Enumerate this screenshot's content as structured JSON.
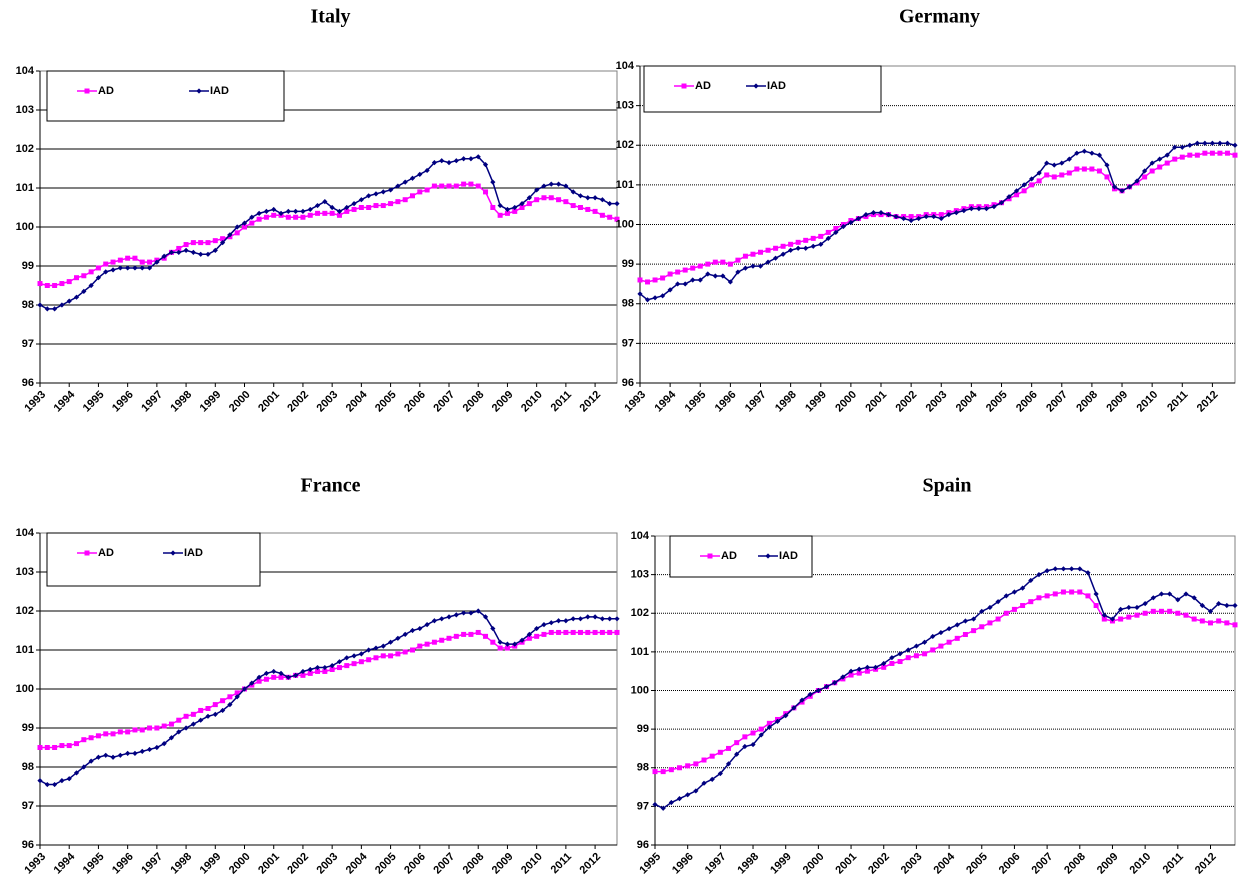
{
  "chart_data": [
    {
      "type": "line",
      "title": "Italy",
      "categories": [
        "1993",
        null,
        null,
        null,
        "1994",
        null,
        null,
        null,
        "1995",
        null,
        null,
        null,
        "1996",
        null,
        null,
        null,
        "1997",
        null,
        null,
        null,
        "1998",
        null,
        null,
        null,
        "1999",
        null,
        null,
        null,
        "2000",
        null,
        null,
        null,
        "2001",
        null,
        null,
        null,
        "2002",
        null,
        null,
        null,
        "2003",
        null,
        null,
        null,
        "2004",
        null,
        null,
        null,
        "2005",
        null,
        null,
        null,
        "2006",
        null,
        null,
        null,
        "2007",
        null,
        null,
        null,
        "2008",
        null,
        null,
        null,
        "2009",
        null,
        null,
        null,
        "2010",
        null,
        null,
        null,
        "2011",
        null,
        null,
        null,
        "2012",
        null,
        null,
        null
      ],
      "series": [
        {
          "name": "AD",
          "color": "#ff00ff",
          "values": [
            98.55,
            98.5,
            98.5,
            98.55,
            98.6,
            98.7,
            98.75,
            98.85,
            98.95,
            99.05,
            99.1,
            99.15,
            99.2,
            99.2,
            99.1,
            99.1,
            99.15,
            99.2,
            99.35,
            99.45,
            99.55,
            99.6,
            99.6,
            99.6,
            99.65,
            99.7,
            99.75,
            99.85,
            100.0,
            100.1,
            100.2,
            100.25,
            100.3,
            100.3,
            100.25,
            100.25,
            100.25,
            100.3,
            100.35,
            100.35,
            100.35,
            100.3,
            100.4,
            100.45,
            100.5,
            100.5,
            100.55,
            100.55,
            100.6,
            100.65,
            100.7,
            100.8,
            100.9,
            100.95,
            101.05,
            101.05,
            101.05,
            101.05,
            101.1,
            101.1,
            101.05,
            100.9,
            100.5,
            100.3,
            100.35,
            100.4,
            100.5,
            100.6,
            100.7,
            100.75,
            100.75,
            100.7,
            100.65,
            100.55,
            100.5,
            100.45,
            100.4,
            100.3,
            100.25,
            100.2
          ]
        },
        {
          "name": "IAD",
          "color": "#000080",
          "values": [
            98.0,
            97.9,
            97.9,
            98.0,
            98.1,
            98.2,
            98.35,
            98.5,
            98.7,
            98.85,
            98.9,
            98.95,
            98.95,
            98.95,
            98.95,
            98.95,
            99.1,
            99.25,
            99.35,
            99.35,
            99.4,
            99.35,
            99.3,
            99.3,
            99.4,
            99.6,
            99.8,
            100.0,
            100.1,
            100.25,
            100.35,
            100.4,
            100.45,
            100.35,
            100.4,
            100.4,
            100.4,
            100.45,
            100.55,
            100.65,
            100.5,
            100.4,
            100.5,
            100.6,
            100.7,
            100.8,
            100.85,
            100.9,
            100.95,
            101.05,
            101.15,
            101.25,
            101.35,
            101.45,
            101.65,
            101.7,
            101.65,
            101.7,
            101.75,
            101.75,
            101.8,
            101.6,
            101.15,
            100.55,
            100.45,
            100.5,
            100.6,
            100.75,
            100.95,
            101.05,
            101.1,
            101.1,
            101.05,
            100.9,
            100.8,
            100.75,
            100.75,
            100.7,
            100.6,
            100.6
          ]
        }
      ],
      "ylim": [
        96,
        104
      ],
      "yticks": [
        96,
        97,
        98,
        99,
        100,
        101,
        102,
        103,
        104
      ],
      "grid": true
    },
    {
      "type": "line",
      "title": "Germany",
      "categories": [
        "1993",
        null,
        null,
        null,
        "1994",
        null,
        null,
        null,
        "1995",
        null,
        null,
        null,
        "1996",
        null,
        null,
        null,
        "1997",
        null,
        null,
        null,
        "1998",
        null,
        null,
        null,
        "1999",
        null,
        null,
        null,
        "2000",
        null,
        null,
        null,
        "2001",
        null,
        null,
        null,
        "2002",
        null,
        null,
        null,
        "2003",
        null,
        null,
        null,
        "2004",
        null,
        null,
        null,
        "2005",
        null,
        null,
        null,
        "2006",
        null,
        null,
        null,
        "2007",
        null,
        null,
        null,
        "2008",
        null,
        null,
        null,
        "2009",
        null,
        null,
        null,
        "2010",
        null,
        null,
        null,
        "2011",
        null,
        null,
        null,
        "2012",
        null,
        null,
        null
      ],
      "series": [
        {
          "name": "AD",
          "color": "#ff00ff",
          "values": [
            98.6,
            98.55,
            98.6,
            98.65,
            98.75,
            98.8,
            98.85,
            98.9,
            98.95,
            99.0,
            99.05,
            99.05,
            99.0,
            99.1,
            99.2,
            99.25,
            99.3,
            99.35,
            99.4,
            99.45,
            99.5,
            99.55,
            99.6,
            99.65,
            99.7,
            99.8,
            99.9,
            100.0,
            100.1,
            100.15,
            100.2,
            100.25,
            100.25,
            100.25,
            100.2,
            100.2,
            100.2,
            100.2,
            100.25,
            100.25,
            100.25,
            100.3,
            100.35,
            100.4,
            100.45,
            100.45,
            100.45,
            100.5,
            100.55,
            100.65,
            100.75,
            100.85,
            101.0,
            101.1,
            101.25,
            101.2,
            101.25,
            101.3,
            101.4,
            101.4,
            101.4,
            101.35,
            101.2,
            100.9,
            100.85,
            100.95,
            101.05,
            101.2,
            101.35,
            101.45,
            101.55,
            101.65,
            101.7,
            101.75,
            101.75,
            101.8,
            101.8,
            101.8,
            101.8,
            101.75
          ]
        },
        {
          "name": "IAD",
          "color": "#000080",
          "values": [
            98.25,
            98.1,
            98.15,
            98.2,
            98.35,
            98.5,
            98.5,
            98.6,
            98.6,
            98.75,
            98.7,
            98.7,
            98.55,
            98.8,
            98.9,
            98.95,
            98.95,
            99.05,
            99.15,
            99.25,
            99.35,
            99.4,
            99.4,
            99.45,
            99.5,
            99.65,
            99.8,
            99.95,
            100.05,
            100.15,
            100.25,
            100.3,
            100.3,
            100.25,
            100.2,
            100.15,
            100.1,
            100.15,
            100.2,
            100.2,
            100.15,
            100.25,
            100.3,
            100.35,
            100.4,
            100.4,
            100.4,
            100.45,
            100.55,
            100.7,
            100.85,
            101.0,
            101.15,
            101.3,
            101.55,
            101.5,
            101.55,
            101.65,
            101.8,
            101.85,
            101.8,
            101.75,
            101.5,
            100.95,
            100.85,
            100.95,
            101.1,
            101.35,
            101.55,
            101.65,
            101.75,
            101.95,
            101.95,
            102.0,
            102.05,
            102.05,
            102.05,
            102.05,
            102.05,
            102.0
          ]
        }
      ],
      "ylim": [
        96,
        104
      ],
      "yticks": [
        96,
        97,
        98,
        99,
        100,
        101,
        102,
        103,
        104
      ],
      "grid": true
    },
    {
      "type": "line",
      "title": "France",
      "categories": [
        "1993",
        null,
        null,
        null,
        "1994",
        null,
        null,
        null,
        "1995",
        null,
        null,
        null,
        "1996",
        null,
        null,
        null,
        "1997",
        null,
        null,
        null,
        "1998",
        null,
        null,
        null,
        "1999",
        null,
        null,
        null,
        "2000",
        null,
        null,
        null,
        "2001",
        null,
        null,
        null,
        "2002",
        null,
        null,
        null,
        "2003",
        null,
        null,
        null,
        "2004",
        null,
        null,
        null,
        "2005",
        null,
        null,
        null,
        "2006",
        null,
        null,
        null,
        "2007",
        null,
        null,
        null,
        "2008",
        null,
        null,
        null,
        "2009",
        null,
        null,
        null,
        "2010",
        null,
        null,
        null,
        "2011",
        null,
        null,
        null,
        "2012",
        null,
        null,
        null
      ],
      "series": [
        {
          "name": "AD",
          "color": "#ff00ff",
          "values": [
            98.5,
            98.5,
            98.5,
            98.55,
            98.55,
            98.6,
            98.7,
            98.75,
            98.8,
            98.85,
            98.85,
            98.9,
            98.9,
            98.95,
            98.95,
            99.0,
            99.0,
            99.05,
            99.1,
            99.2,
            99.3,
            99.35,
            99.45,
            99.5,
            99.6,
            99.7,
            99.8,
            99.9,
            100.0,
            100.1,
            100.2,
            100.25,
            100.3,
            100.3,
            100.3,
            100.35,
            100.35,
            100.4,
            100.45,
            100.45,
            100.5,
            100.55,
            100.6,
            100.65,
            100.7,
            100.75,
            100.8,
            100.85,
            100.85,
            100.9,
            100.95,
            101.0,
            101.1,
            101.15,
            101.2,
            101.25,
            101.3,
            101.35,
            101.4,
            101.4,
            101.45,
            101.35,
            101.2,
            101.05,
            101.05,
            101.1,
            101.2,
            101.3,
            101.35,
            101.4,
            101.45,
            101.45,
            101.45,
            101.45,
            101.45,
            101.45,
            101.45,
            101.45,
            101.45,
            101.45
          ]
        },
        {
          "name": "IAD",
          "color": "#000080",
          "values": [
            97.65,
            97.55,
            97.55,
            97.65,
            97.7,
            97.85,
            98.0,
            98.15,
            98.25,
            98.3,
            98.25,
            98.3,
            98.35,
            98.35,
            98.4,
            98.45,
            98.5,
            98.6,
            98.75,
            98.9,
            99.0,
            99.1,
            99.2,
            99.3,
            99.35,
            99.45,
            99.6,
            99.8,
            100.0,
            100.15,
            100.3,
            100.4,
            100.45,
            100.4,
            100.3,
            100.35,
            100.45,
            100.5,
            100.55,
            100.55,
            100.6,
            100.7,
            100.8,
            100.85,
            100.9,
            101.0,
            101.05,
            101.1,
            101.2,
            101.3,
            101.4,
            101.5,
            101.55,
            101.65,
            101.75,
            101.8,
            101.85,
            101.9,
            101.95,
            101.95,
            102.0,
            101.85,
            101.55,
            101.2,
            101.15,
            101.15,
            101.25,
            101.4,
            101.55,
            101.65,
            101.7,
            101.75,
            101.75,
            101.8,
            101.8,
            101.85,
            101.85,
            101.8,
            101.8,
            101.8
          ]
        }
      ],
      "ylim": [
        96,
        104
      ],
      "yticks": [
        96,
        97,
        98,
        99,
        100,
        101,
        102,
        103,
        104
      ],
      "grid": true
    },
    {
      "type": "line",
      "title": "Spain",
      "categories": [
        "1995",
        null,
        null,
        null,
        "1996",
        null,
        null,
        null,
        "1997",
        null,
        null,
        null,
        "1998",
        null,
        null,
        null,
        "1999",
        null,
        null,
        null,
        "2000",
        null,
        null,
        null,
        "2001",
        null,
        null,
        null,
        "2002",
        null,
        null,
        null,
        "2003",
        null,
        null,
        null,
        "2004",
        null,
        null,
        null,
        "2005",
        null,
        null,
        null,
        "2006",
        null,
        null,
        null,
        "2007",
        null,
        null,
        null,
        "2008",
        null,
        null,
        null,
        "2009",
        null,
        null,
        null,
        "2010",
        null,
        null,
        null,
        "2011",
        null,
        null,
        null,
        "2012",
        null,
        null,
        null
      ],
      "series": [
        {
          "name": "AD",
          "color": "#ff00ff",
          "values": [
            97.9,
            97.9,
            97.95,
            98.0,
            98.05,
            98.1,
            98.2,
            98.3,
            98.4,
            98.5,
            98.65,
            98.8,
            98.9,
            99.0,
            99.15,
            99.25,
            99.4,
            99.55,
            99.7,
            99.85,
            100.0,
            100.1,
            100.2,
            100.3,
            100.4,
            100.45,
            100.5,
            100.55,
            100.6,
            100.7,
            100.75,
            100.85,
            100.9,
            100.95,
            101.05,
            101.15,
            101.25,
            101.35,
            101.45,
            101.55,
            101.65,
            101.75,
            101.85,
            102.0,
            102.1,
            102.2,
            102.3,
            102.4,
            102.45,
            102.5,
            102.55,
            102.55,
            102.55,
            102.45,
            102.2,
            101.85,
            101.8,
            101.85,
            101.9,
            101.95,
            102.0,
            102.05,
            102.05,
            102.05,
            102.0,
            101.95,
            101.85,
            101.8,
            101.75,
            101.8,
            101.75,
            101.7
          ]
        },
        {
          "name": "IAD",
          "color": "#000080",
          "values": [
            97.05,
            96.95,
            97.1,
            97.2,
            97.3,
            97.4,
            97.6,
            97.7,
            97.85,
            98.1,
            98.35,
            98.55,
            98.6,
            98.85,
            99.05,
            99.2,
            99.35,
            99.55,
            99.75,
            99.9,
            100.0,
            100.1,
            100.2,
            100.35,
            100.5,
            100.55,
            100.6,
            100.6,
            100.7,
            100.85,
            100.95,
            101.05,
            101.15,
            101.25,
            101.4,
            101.5,
            101.6,
            101.7,
            101.8,
            101.85,
            102.05,
            102.15,
            102.3,
            102.45,
            102.55,
            102.65,
            102.85,
            103.0,
            103.1,
            103.15,
            103.15,
            103.15,
            103.15,
            103.05,
            102.5,
            101.95,
            101.85,
            102.1,
            102.15,
            102.15,
            102.25,
            102.4,
            102.5,
            102.5,
            102.35,
            102.5,
            102.4,
            102.2,
            102.05,
            102.25,
            102.2,
            102.2
          ]
        }
      ],
      "ylim": [
        96,
        104
      ],
      "yticks": [
        96,
        97,
        98,
        99,
        100,
        101,
        102,
        103,
        104
      ],
      "grid": true
    }
  ]
}
